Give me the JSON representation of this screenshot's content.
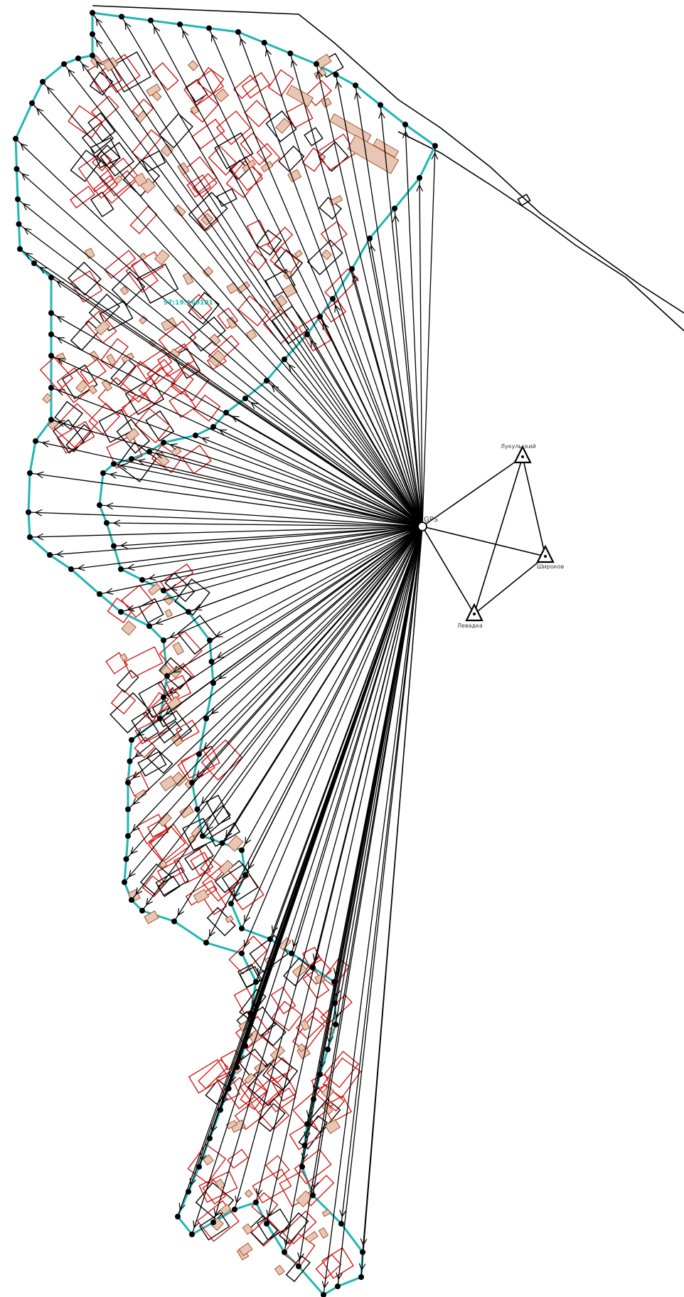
{
  "quarter_label": "97:19:160101",
  "gps_station": {
    "label": "GPS"
  },
  "control_points": [
    {
      "label": "Лукульский"
    },
    {
      "label": "Широков"
    },
    {
      "label": "Левадка"
    }
  ],
  "colors": {
    "boundary": "#1fb5b5",
    "parcel": "#d11a1a",
    "building_fill": "#e7c6b4",
    "building_stroke": "#a9542f",
    "lines": "#000000"
  }
}
